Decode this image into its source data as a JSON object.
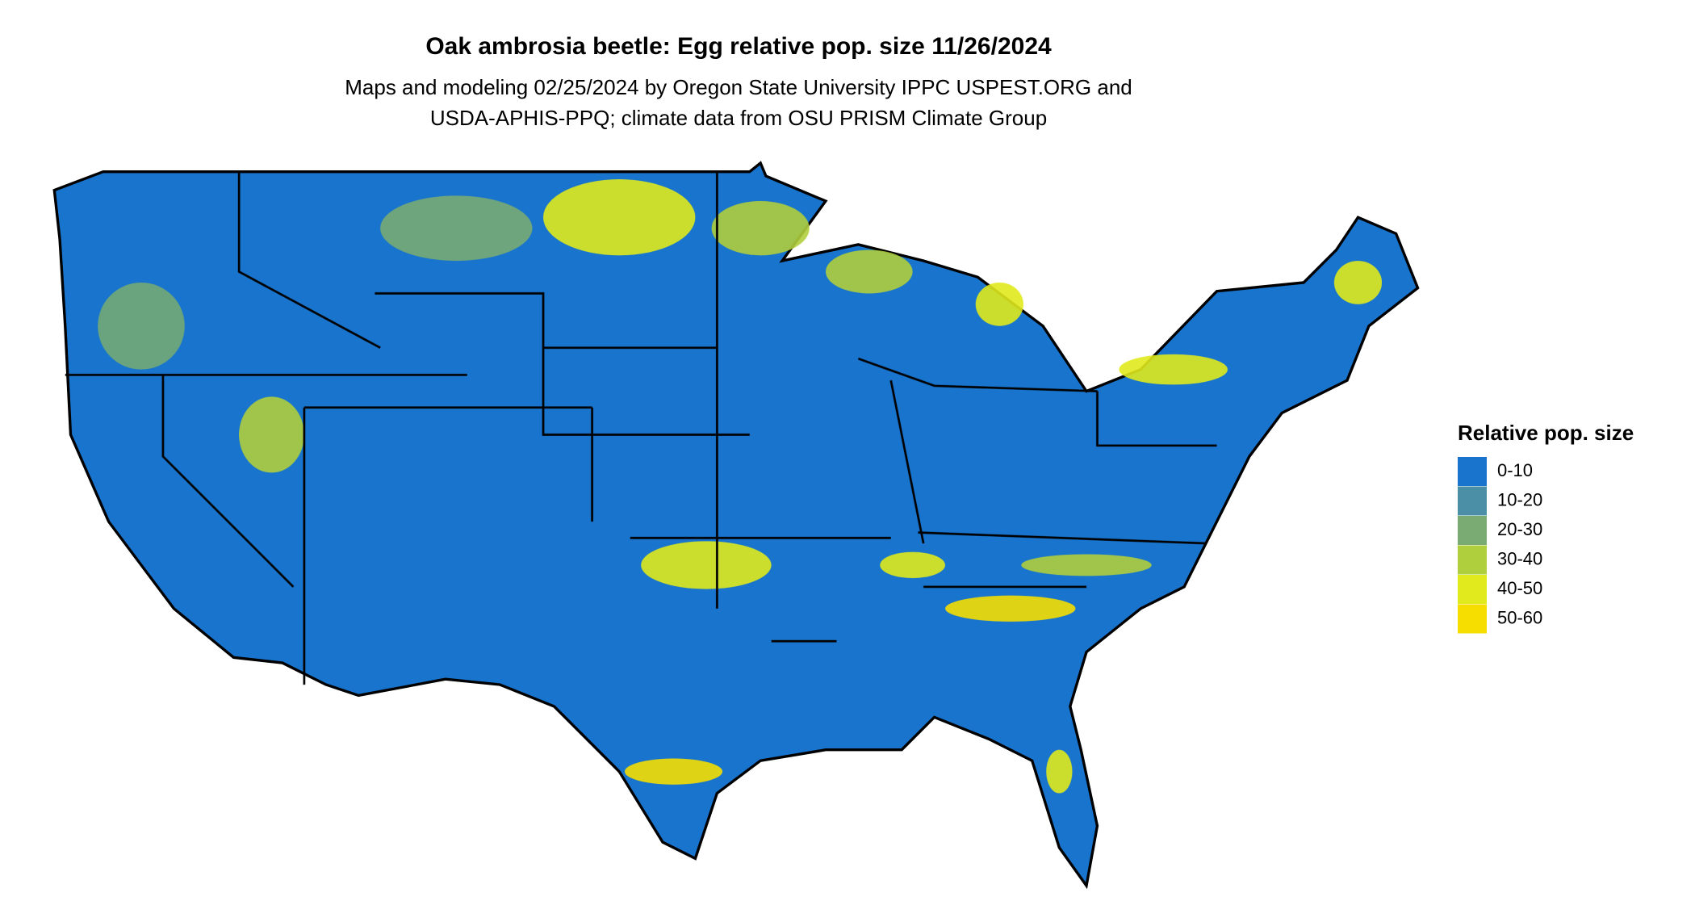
{
  "header": {
    "title": "Oak ambrosia beetle: Egg relative pop. size 11/26/2024",
    "subtitle": [
      "Maps and modeling 02/25/2024 by Oregon State University IPPC USPEST.ORG and",
      "USDA-APHIS-PPQ; climate data from OSU PRISM Climate Group"
    ]
  },
  "legend": {
    "title": "Relative pop. size",
    "items": [
      {
        "label": "0-10",
        "color": "#1874cd"
      },
      {
        "label": "10-20",
        "color": "#4a8fa6"
      },
      {
        "label": "20-30",
        "color": "#7aab73"
      },
      {
        "label": "30-40",
        "color": "#b0cf3c"
      },
      {
        "label": "40-50",
        "color": "#e0ea1c"
      },
      {
        "label": "50-60",
        "color": "#f5de00"
      }
    ]
  }
}
